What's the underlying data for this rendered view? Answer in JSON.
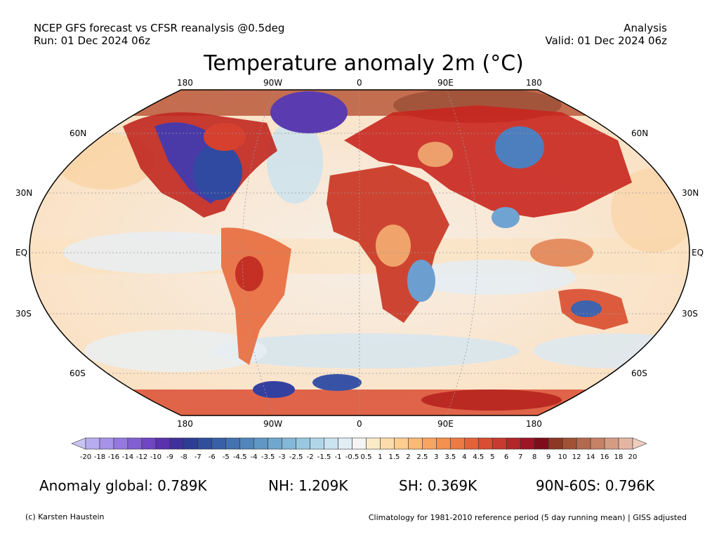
{
  "header": {
    "left_line1": "NCEP GFS forecast vs CFSR reanalysis @0.5deg",
    "left_line2": "Run: 01 Dec 2024 06z",
    "right_line1": "Analysis",
    "right_line2": "Valid: 01 Dec 2024 06z"
  },
  "title": "Temperature anomaly 2m (°C)",
  "map": {
    "lon_labels_top": [
      "180",
      "90W",
      "0",
      "90E",
      "180"
    ],
    "lon_labels_bottom": [
      "180",
      "90W",
      "0",
      "90E",
      "180"
    ],
    "lat_labels_left": [
      "60N",
      "30N",
      "EQ",
      "30S",
      "60S"
    ],
    "lat_labels_right": [
      "60N",
      "30N",
      "EQ",
      "30S",
      "60S"
    ]
  },
  "colorbar": {
    "labels": [
      "-20",
      "-18",
      "-16",
      "-14",
      "-12",
      "-10",
      "-9",
      "-8",
      "-7",
      "-6",
      "-5",
      "-4.5",
      "-4",
      "-3.5",
      "-3",
      "-2.5",
      "-2",
      "-1.5",
      "-1",
      "-0.5",
      "0.5",
      "1",
      "1.5",
      "2",
      "2.5",
      "3",
      "3.5",
      "4",
      "4.5",
      "5",
      "6",
      "7",
      "8",
      "9",
      "10",
      "12",
      "14",
      "16",
      "18",
      "20"
    ],
    "colors": [
      "#c9c3f3",
      "#b7acee",
      "#a692e8",
      "#9478de",
      "#8360d2",
      "#6f46c3",
      "#5a32ad",
      "#40309a",
      "#2e3d94",
      "#2f4f9c",
      "#3860a6",
      "#4472b0",
      "#5285bb",
      "#6097c4",
      "#70a7cd",
      "#83b7d6",
      "#99c7e0",
      "#b1d6e8",
      "#c9e3ef",
      "#e0eef4",
      "#f4f4f4",
      "#fbeac8",
      "#fcdcaa",
      "#fdcc8f",
      "#fbb977",
      "#f9a561",
      "#f38f4f",
      "#ec7a42",
      "#e26339",
      "#d94d32",
      "#c83a2f",
      "#b2272a",
      "#9c1525",
      "#7d0d1b",
      "#8c3824",
      "#a15236",
      "#b3694d",
      "#c58266",
      "#d59c84",
      "#e4b6a2",
      "#efcdbf"
    ]
  },
  "stats": {
    "global": "Anomaly global: 0.789K",
    "nh": "NH: 1.209K",
    "sh": "SH: 0.369K",
    "arctic": "90N-60S: 0.796K"
  },
  "footer": {
    "left": "(c) Karsten Haustein",
    "right": "Climatology for 1981-2010 reference period (5 day running mean) | GISS adjusted"
  }
}
